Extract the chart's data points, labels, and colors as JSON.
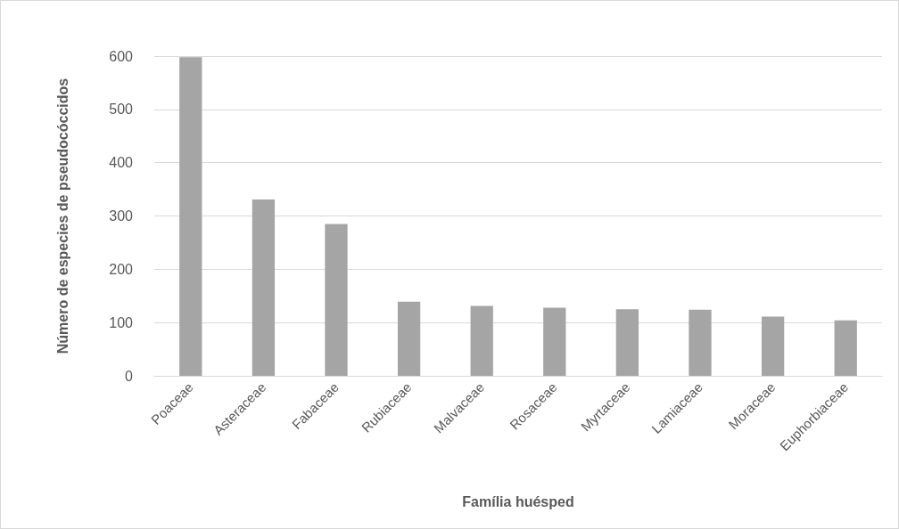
{
  "chart_data": {
    "type": "bar",
    "xlabel": "Família huésped",
    "ylabel": "Número de especies de pseudocóccidos",
    "categories": [
      "Poaceae",
      "Asteraceae",
      "Fabaceae",
      "Rubiaceae",
      "Malvaceae",
      "Rosaceae",
      "Myrtaceae",
      "Lamiaceae",
      "Moraceae",
      "Euphorbiaceae"
    ],
    "values": [
      598,
      331,
      285,
      139,
      131,
      128,
      125,
      124,
      111,
      104
    ],
    "color": "#a5a5a5",
    "ylim": [
      0,
      600
    ],
    "yticks": [
      0,
      100,
      200,
      300,
      400,
      500,
      600
    ],
    "grid": "y"
  }
}
